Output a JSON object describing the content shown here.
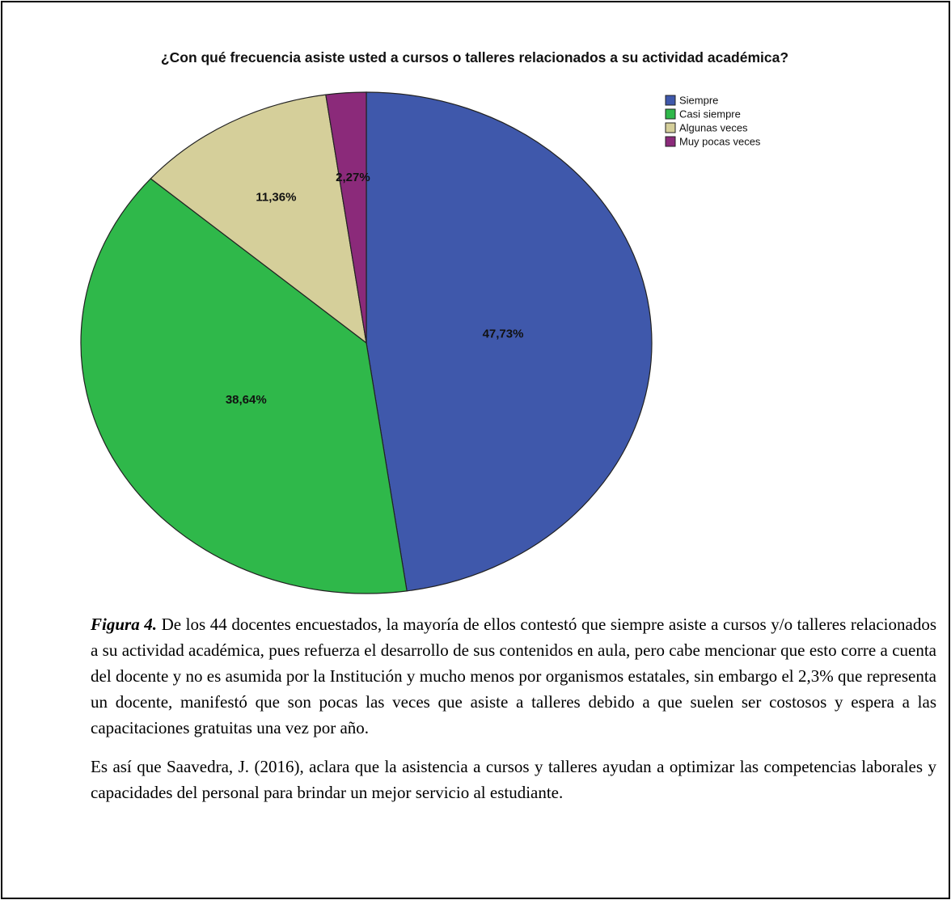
{
  "chart_data": {
    "type": "pie",
    "title": "¿Con qué frecuencia asiste usted a cursos o talleres relacionados a su actividad académica?",
    "categories": [
      "Siempre",
      "Casi siempre",
      "Algunas veces",
      "Muy pocas veces"
    ],
    "values": [
      47.73,
      38.64,
      11.36,
      2.27
    ],
    "value_labels": [
      "47,73%",
      "38,64%",
      "11,36%",
      "2,27%"
    ],
    "colors": [
      "#3f58ab",
      "#2fb84a",
      "#d5cf9a",
      "#8b2a7a"
    ],
    "legend": "upper right"
  },
  "caption": {
    "figure_label": "Figura 4.",
    "paragraphs": [
      "De los 44 docentes encuestados, la mayoría de ellos contestó que siempre asiste a cursos y/o talleres relacionados a su actividad académica, pues refuerza el desarrollo de sus contenidos en aula, pero cabe mencionar que esto corre a cuenta del docente y no es asumida por la Institución y mucho menos por organismos estatales, sin embargo el 2,3% que representa un docente, manifestó que son pocas las veces que asiste a talleres debido a que suelen ser costosos y espera a las capacitaciones gratuitas una vez por año.",
      "Es así que Saavedra, J. (2016), aclara que la asistencia a cursos y talleres ayudan a optimizar las competencias laborales y capacidades del personal para brindar un mejor servicio al estudiante."
    ]
  }
}
